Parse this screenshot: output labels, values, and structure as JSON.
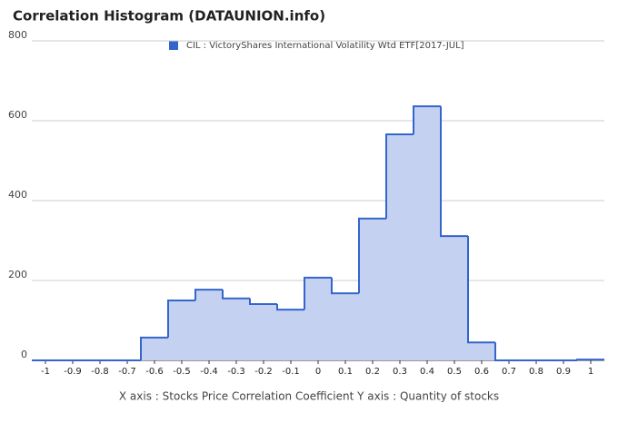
{
  "chart_data": {
    "type": "histogram",
    "title": "Correlation Histogram (DATAUNION.info)",
    "footer": "X axis : Stocks Price Correlation Coefficient  Y axis : Quantity of stocks",
    "series_name": "CIL : VictoryShares International Volatility Wtd ETF[2017-JUL]",
    "color": "#3366cc",
    "fill": "#c5d1f0",
    "bins": [
      -1.05,
      -0.95,
      -0.85,
      -0.75,
      -0.65,
      -0.55,
      -0.45,
      -0.35,
      -0.25,
      -0.15,
      -0.05,
      0.05,
      0.15,
      0.25,
      0.35,
      0.45,
      0.55,
      0.65,
      0.75,
      0.85,
      0.95,
      1.05
    ],
    "counts": [
      0,
      0,
      0,
      0,
      57,
      150,
      177,
      155,
      141,
      127,
      207,
      168,
      355,
      566,
      636,
      311,
      45,
      0,
      0,
      0,
      2
    ],
    "xlim": [
      -1.05,
      1.05
    ],
    "xticks": [
      -1,
      -0.9,
      -0.8,
      -0.7,
      -0.6,
      -0.5,
      -0.4,
      -0.3,
      -0.2,
      -0.1,
      0,
      0.1,
      0.2,
      0.3,
      0.4,
      0.5,
      0.6,
      0.7,
      0.8,
      0.9,
      1
    ],
    "ylim": [
      0,
      800
    ],
    "yticks": [
      0,
      200,
      400,
      600,
      800
    ],
    "grid": true
  }
}
